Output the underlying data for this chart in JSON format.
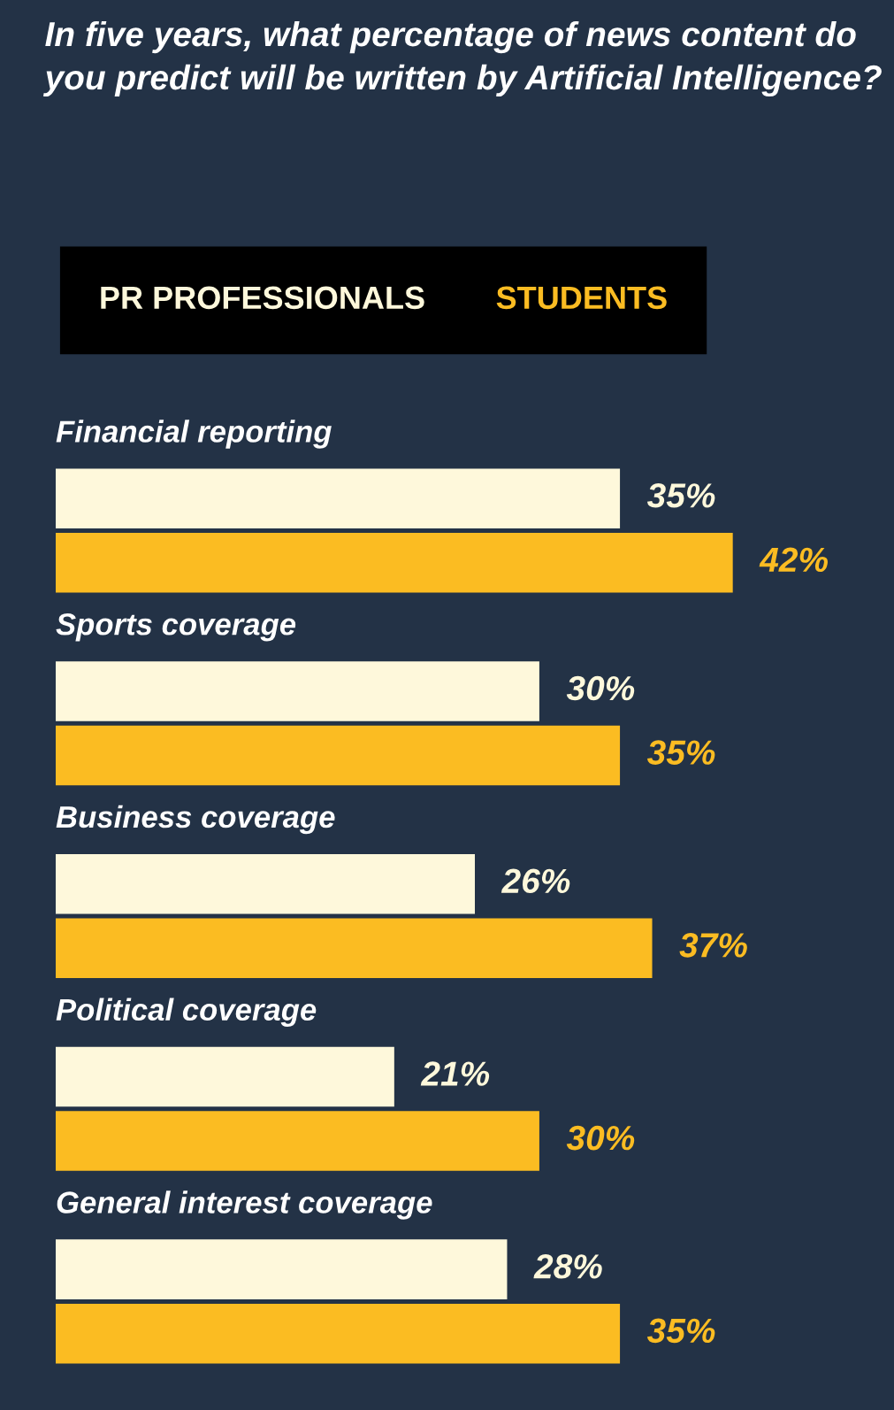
{
  "chart_data": {
    "type": "bar",
    "orientation": "horizontal",
    "title": "In five years, what percentage of news content do you predict will be written by Artificial Intelligence?",
    "categories": [
      "Financial reporting",
      "Sports coverage",
      "Business coverage",
      "Political coverage",
      "General interest coverage"
    ],
    "series": [
      {
        "name": "PR PROFESSIONALS",
        "color": "#fef8db",
        "values": [
          35,
          30,
          26,
          21,
          28
        ],
        "value_labels": [
          "35%",
          "30%",
          "26%",
          "21%",
          "28%"
        ]
      },
      {
        "name": "STUDENTS",
        "color": "#fbbc22",
        "values": [
          42,
          35,
          37,
          30,
          35
        ],
        "value_labels": [
          "42%",
          "35%",
          "37%",
          "30%",
          "35%"
        ]
      }
    ],
    "relative": false,
    "xlim": [
      0,
      52
    ],
    "legend": "top left",
    "tick_labels": false
  }
}
